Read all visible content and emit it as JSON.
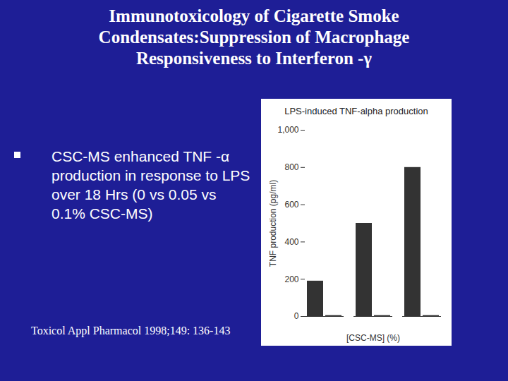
{
  "slide": {
    "title_lines": [
      "Immunotoxicology of Cigarette Smoke",
      "Condensates:Suppression of Macrophage",
      "Responsiveness to Interferon -γ"
    ],
    "bullet": "CSC-MS enhanced TNF -α production in response to LPS over 18 Hrs (0 vs 0.05 vs 0.1% CSC-MS)",
    "citation": "Toxicol Appl Pharmacol 1998;149: 136-143"
  },
  "chart_data": {
    "type": "bar",
    "title": "LPS-induced TNF-alpha production",
    "x_label": "[CSC-MS] (%)",
    "y_label": "TNF production (pg/ml)",
    "categories": [
      null,
      null,
      null
    ],
    "series": [
      {
        "color": "#333333",
        "values": [
          190,
          500,
          800
        ]
      },
      {
        "color": "#333333",
        "values": [
          5,
          5,
          5
        ]
      }
    ],
    "ylim": [
      0,
      1000
    ],
    "yticks": [
      0,
      200,
      400,
      600,
      800,
      1000
    ],
    "grid": false
  }
}
